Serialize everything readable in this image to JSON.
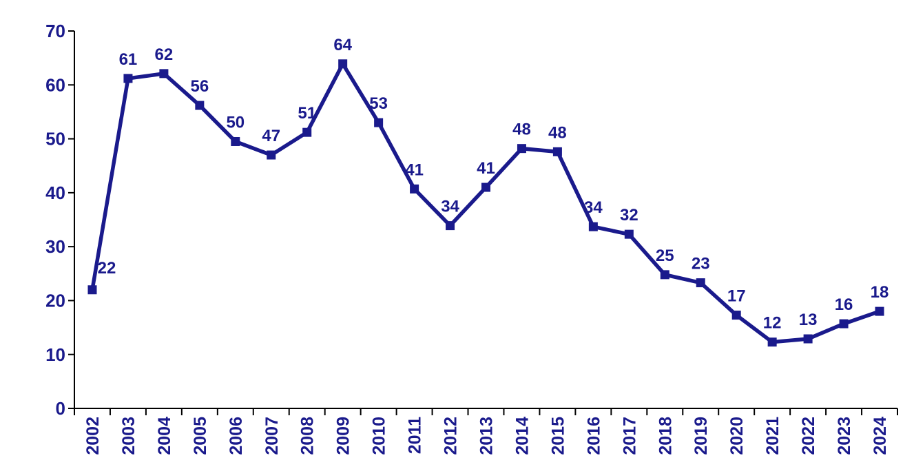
{
  "chart_data": {
    "type": "line",
    "title": "",
    "xlabel": "",
    "ylabel": "",
    "categories": [
      "2002",
      "2003",
      "2004",
      "2005",
      "2006",
      "2007",
      "2008",
      "2009",
      "2010",
      "2011",
      "2012",
      "2013",
      "2014",
      "2015",
      "2016",
      "2017",
      "2018",
      "2019",
      "2020",
      "2021",
      "2022",
      "2023",
      "2024"
    ],
    "series": [
      {
        "name": "values-by-year",
        "values": [
          22.0,
          61.2,
          62.1,
          56.2,
          49.5,
          47.0,
          51.2,
          63.9,
          53.0,
          40.7,
          33.9,
          41.0,
          48.2,
          47.6,
          33.7,
          32.3,
          24.8,
          23.3,
          17.3,
          12.3,
          12.9,
          15.7,
          18.0
        ],
        "labels": [
          "22",
          "61",
          "62",
          "56",
          "50",
          "47",
          "51",
          "64",
          "53",
          "41",
          "34",
          "41",
          "48",
          "48",
          "34",
          "32",
          "25",
          "23",
          "17",
          "12",
          "13",
          "16",
          "18"
        ]
      }
    ],
    "ylim": [
      0,
      70
    ],
    "yticks": [
      0,
      10,
      20,
      30,
      40,
      50,
      60,
      70
    ],
    "grid": false,
    "legend_position": "none",
    "marker_shape": "square",
    "label_offsets": {
      "0": {
        "dx": 21,
        "dy": -4
      }
    },
    "colors": {
      "series": "#1a1a8c",
      "data_labels": "#1a1a8c",
      "tick_labels": "#1a1a8c",
      "axis": "#000000",
      "background": "#ffffff"
    }
  }
}
